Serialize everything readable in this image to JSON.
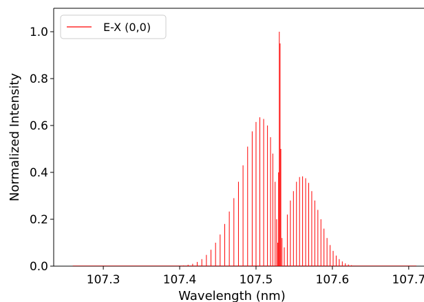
{
  "chart_data": {
    "type": "line",
    "title": "",
    "xlabel": "Wavelength (nm)",
    "ylabel": "Normalized Intensity",
    "xlim": [
      107.235,
      107.72
    ],
    "ylim": [
      0.0,
      1.1
    ],
    "x_ticks": [
      107.3,
      107.4,
      107.5,
      107.6,
      107.7
    ],
    "x_tick_labels": [
      "107.3",
      "107.4",
      "107.5",
      "107.6",
      "107.7"
    ],
    "y_ticks": [
      0.0,
      0.2,
      0.4,
      0.6,
      0.8,
      1.0
    ],
    "y_tick_labels": [
      "0.0",
      "0.2",
      "0.4",
      "0.6",
      "0.8",
      "1.0"
    ],
    "grid": false,
    "legend": {
      "position": "upper-left",
      "entries": [
        "E-X (0,0)"
      ]
    },
    "color": "#ff0000",
    "series": [
      {
        "name": "E-X (0,0)",
        "peaks": [
          {
            "x": 107.405,
            "y": 0.003
          },
          {
            "x": 107.411,
            "y": 0.006
          },
          {
            "x": 107.417,
            "y": 0.01
          },
          {
            "x": 107.423,
            "y": 0.018
          },
          {
            "x": 107.429,
            "y": 0.03
          },
          {
            "x": 107.435,
            "y": 0.048
          },
          {
            "x": 107.441,
            "y": 0.07
          },
          {
            "x": 107.447,
            "y": 0.1
          },
          {
            "x": 107.453,
            "y": 0.135
          },
          {
            "x": 107.459,
            "y": 0.18
          },
          {
            "x": 107.465,
            "y": 0.233
          },
          {
            "x": 107.471,
            "y": 0.29
          },
          {
            "x": 107.477,
            "y": 0.36
          },
          {
            "x": 107.483,
            "y": 0.43
          },
          {
            "x": 107.489,
            "y": 0.51
          },
          {
            "x": 107.495,
            "y": 0.575
          },
          {
            "x": 107.5,
            "y": 0.615
          },
          {
            "x": 107.505,
            "y": 0.635
          },
          {
            "x": 107.51,
            "y": 0.628
          },
          {
            "x": 107.515,
            "y": 0.6
          },
          {
            "x": 107.519,
            "y": 0.55
          },
          {
            "x": 107.522,
            "y": 0.48
          },
          {
            "x": 107.525,
            "y": 0.36
          },
          {
            "x": 107.527,
            "y": 0.2
          },
          {
            "x": 107.5285,
            "y": 0.1
          },
          {
            "x": 107.5295,
            "y": 0.4
          },
          {
            "x": 107.5305,
            "y": 1.0
          },
          {
            "x": 107.5315,
            "y": 0.95
          },
          {
            "x": 107.5325,
            "y": 0.5
          },
          {
            "x": 107.534,
            "y": 0.12
          },
          {
            "x": 107.537,
            "y": 0.08
          },
          {
            "x": 107.541,
            "y": 0.22
          },
          {
            "x": 107.545,
            "y": 0.28
          },
          {
            "x": 107.549,
            "y": 0.32
          },
          {
            "x": 107.553,
            "y": 0.36
          },
          {
            "x": 107.557,
            "y": 0.38
          },
          {
            "x": 107.561,
            "y": 0.383
          },
          {
            "x": 107.565,
            "y": 0.375
          },
          {
            "x": 107.569,
            "y": 0.355
          },
          {
            "x": 107.573,
            "y": 0.32
          },
          {
            "x": 107.577,
            "y": 0.28
          },
          {
            "x": 107.581,
            "y": 0.24
          },
          {
            "x": 107.585,
            "y": 0.2
          },
          {
            "x": 107.589,
            "y": 0.16
          },
          {
            "x": 107.593,
            "y": 0.12
          },
          {
            "x": 107.597,
            "y": 0.09
          },
          {
            "x": 107.601,
            "y": 0.065
          },
          {
            "x": 107.605,
            "y": 0.045
          },
          {
            "x": 107.609,
            "y": 0.03
          },
          {
            "x": 107.613,
            "y": 0.02
          },
          {
            "x": 107.617,
            "y": 0.012
          },
          {
            "x": 107.621,
            "y": 0.007
          },
          {
            "x": 107.625,
            "y": 0.004
          }
        ]
      }
    ]
  }
}
